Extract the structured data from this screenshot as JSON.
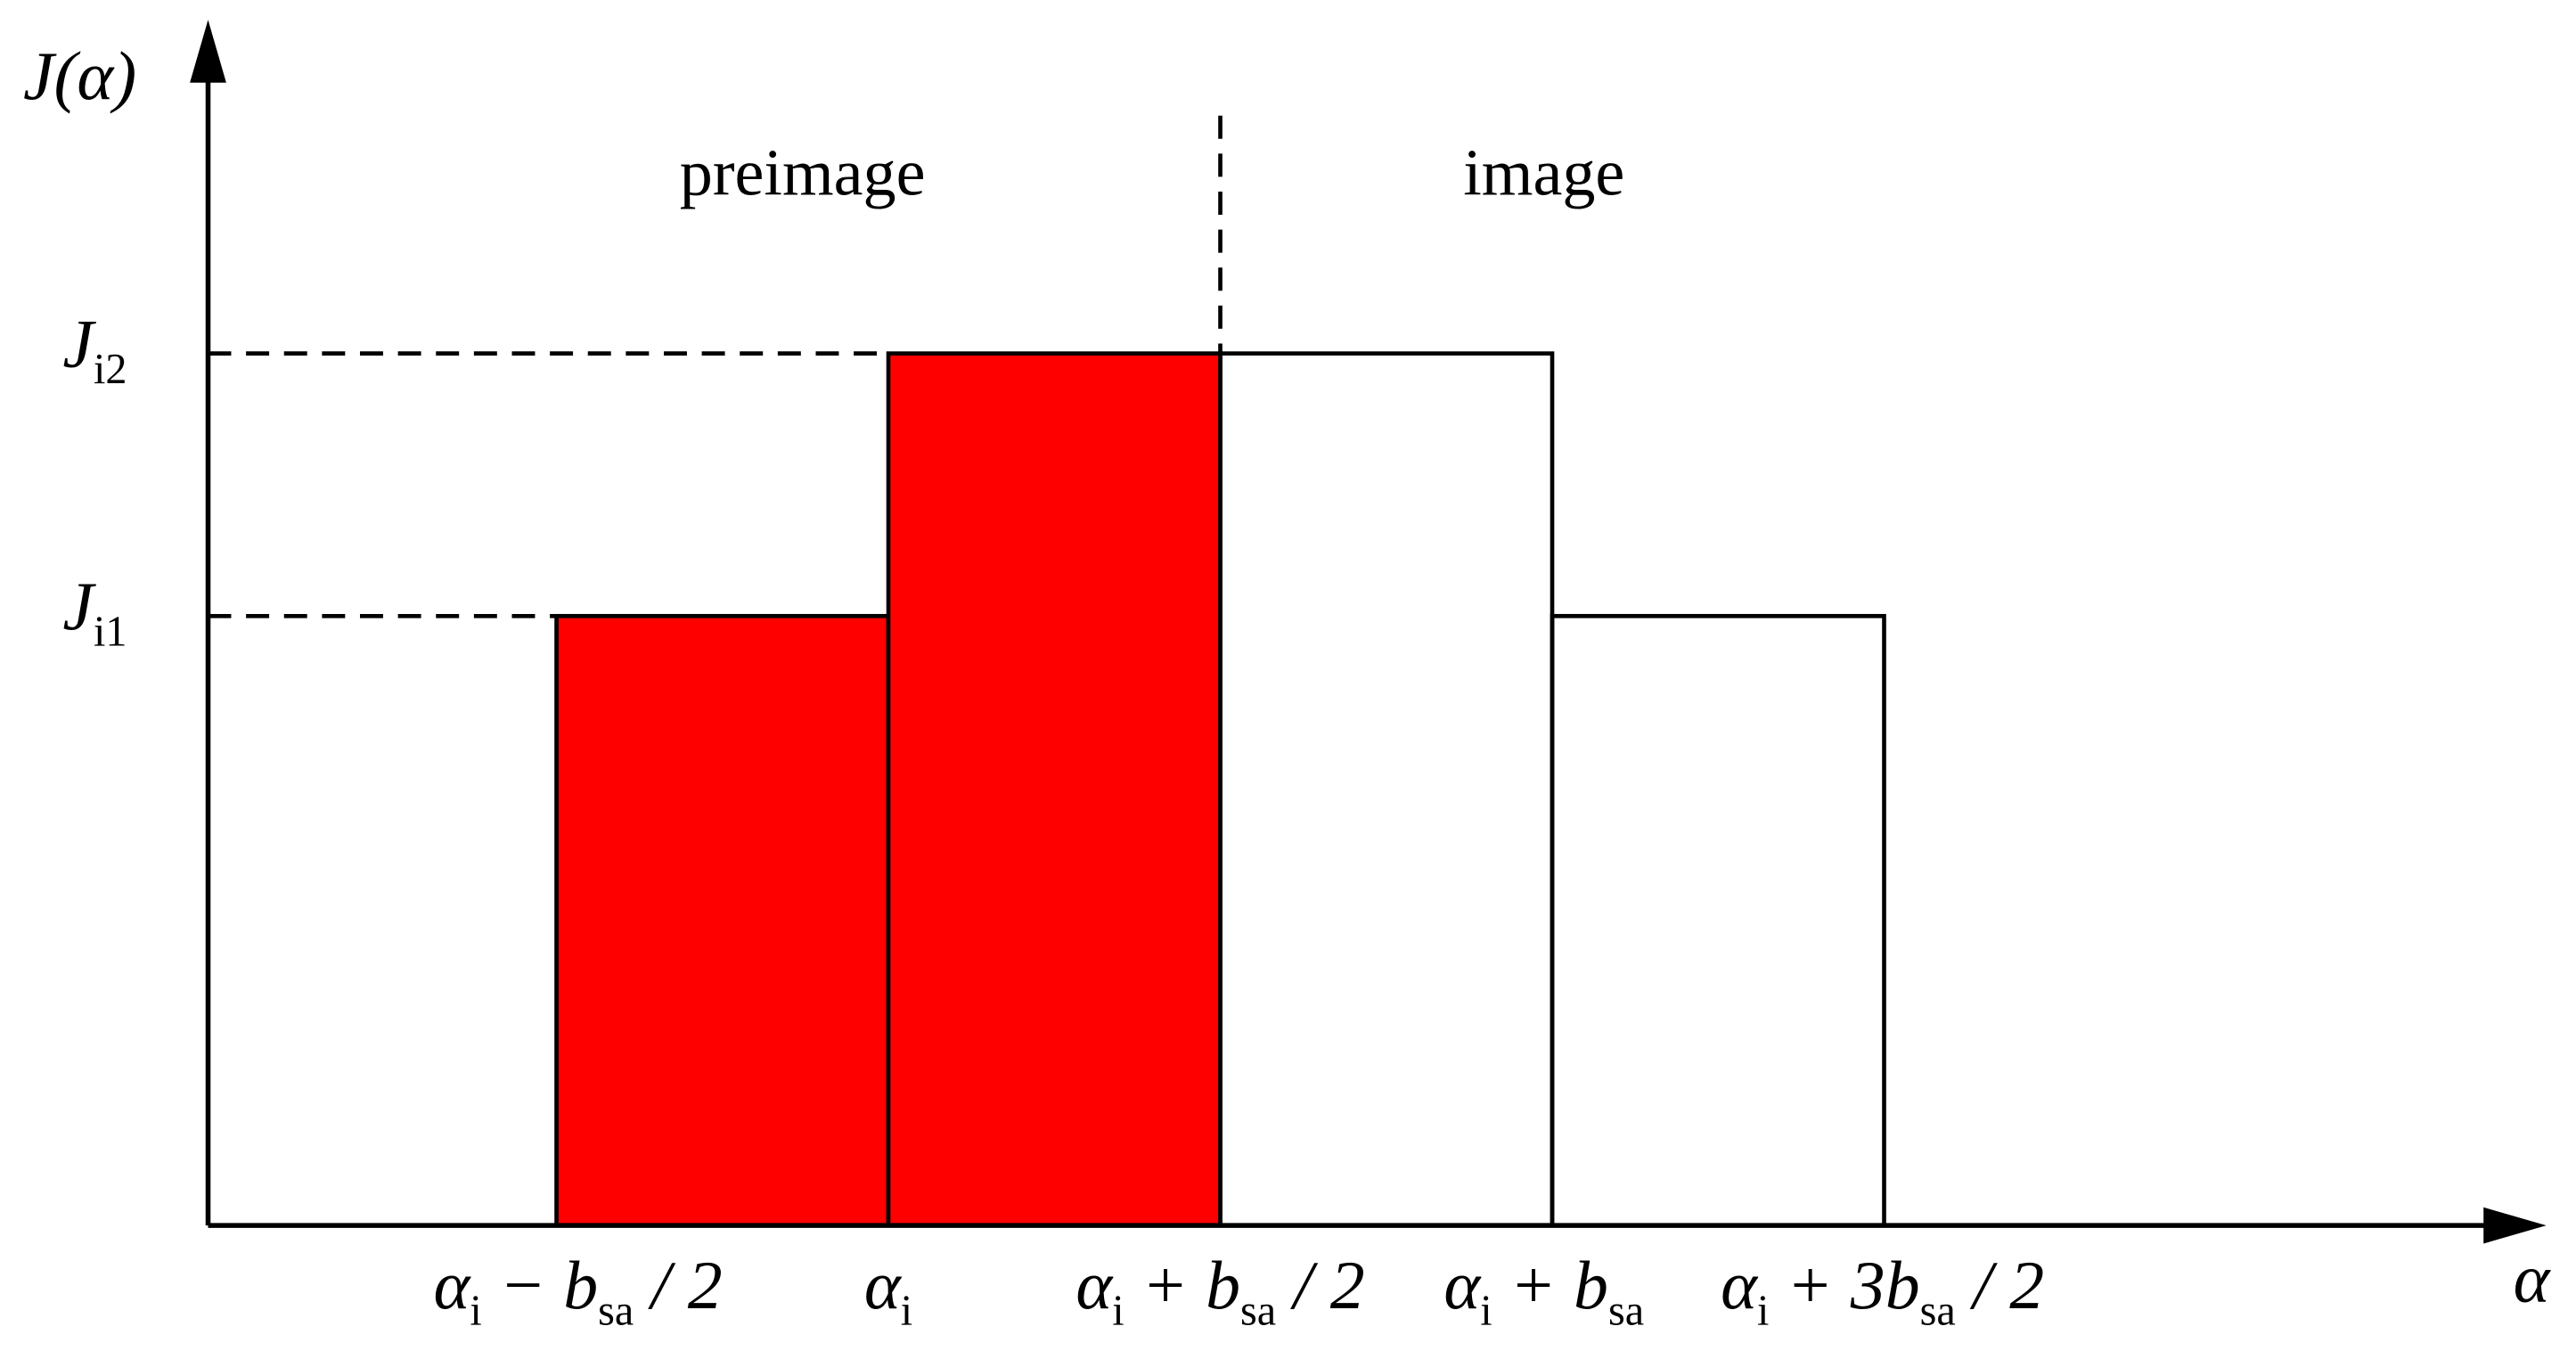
{
  "axes": {
    "y_label": [
      {
        "main": "J(α)"
      }
    ],
    "x_label": [
      {
        "main": "α"
      }
    ]
  },
  "regions": {
    "left": "preimage",
    "right": "image"
  },
  "y_ticks": [
    [
      {
        "main": "J"
      },
      {
        "sub": "i2"
      }
    ],
    [
      {
        "main": "J"
      },
      {
        "sub": "i1"
      }
    ]
  ],
  "x_ticks": [
    [
      {
        "main": "α"
      },
      {
        "sub": "i"
      },
      {
        "main": " − b"
      },
      {
        "sub": "sa"
      },
      {
        "main": " / 2"
      }
    ],
    [
      {
        "main": "α"
      },
      {
        "sub": "i"
      }
    ],
    [
      {
        "main": "α"
      },
      {
        "sub": "i"
      },
      {
        "main": " + b"
      },
      {
        "sub": "sa"
      },
      {
        "main": " / 2"
      }
    ],
    [
      {
        "main": "α"
      },
      {
        "sub": "i"
      },
      {
        "main": " + b"
      },
      {
        "sub": "sa"
      }
    ],
    [
      {
        "main": "α"
      },
      {
        "sub": "i"
      },
      {
        "main": " + 3b"
      },
      {
        "sub": "sa"
      },
      {
        "main": " / 2"
      }
    ]
  ]
}
